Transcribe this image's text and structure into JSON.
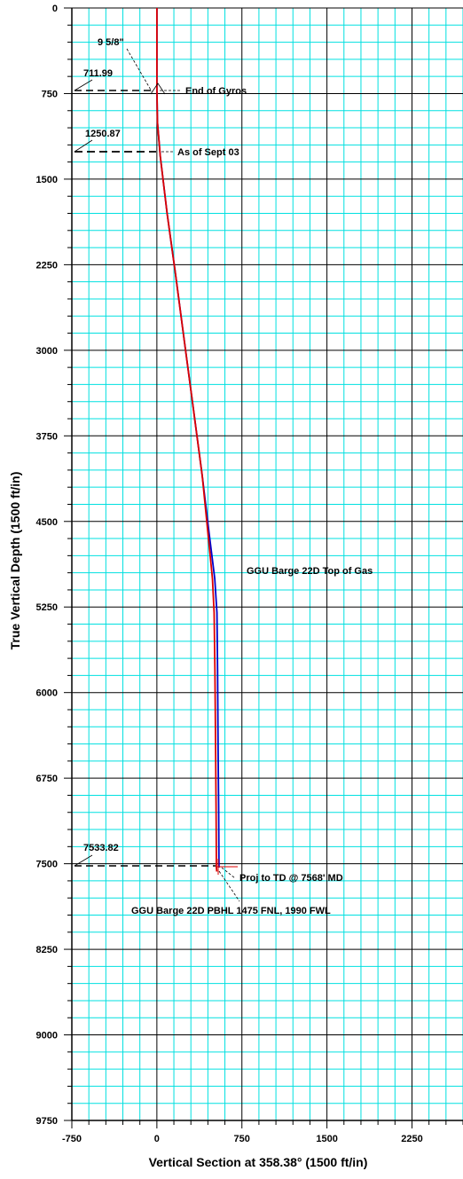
{
  "chart_data": {
    "type": "line",
    "title": "",
    "xlabel": "Vertical Section at 358.38° (1500 ft/in)",
    "ylabel": "True Vertical Depth (1500 ft/in)",
    "xlim": [
      -750,
      2700
    ],
    "ylim": [
      0,
      9750
    ],
    "y_inverted": true,
    "grid": true,
    "grid_color": "#00e0e0",
    "major_grid_color": "#000000",
    "major_grid_step": 750,
    "minor_grid_step": 150,
    "x_ticks": [
      {
        "value": -750,
        "label": "-750"
      },
      {
        "value": 0,
        "label": "0"
      },
      {
        "value": 750,
        "label": "750"
      },
      {
        "value": 1500,
        "label": "1500"
      },
      {
        "value": 2250,
        "label": "2250"
      }
    ],
    "y_ticks": [
      {
        "value": 0,
        "label": "0"
      },
      {
        "value": 750,
        "label": "750"
      },
      {
        "value": 1500,
        "label": "1500"
      },
      {
        "value": 2250,
        "label": "2250"
      },
      {
        "value": 3000,
        "label": "3000"
      },
      {
        "value": 3750,
        "label": "3750"
      },
      {
        "value": 4500,
        "label": "4500"
      },
      {
        "value": 5250,
        "label": "5250"
      },
      {
        "value": 6000,
        "label": "6000"
      },
      {
        "value": 6750,
        "label": "6750"
      },
      {
        "value": 7500,
        "label": "7500"
      },
      {
        "value": 8250,
        "label": "8250"
      },
      {
        "value": 9000,
        "label": "9000"
      },
      {
        "value": 9750,
        "label": "9750"
      }
    ],
    "series": [
      {
        "color": "#0000cc",
        "points": [
          [
            0,
            0
          ],
          [
            0,
            700
          ],
          [
            5,
            1000
          ],
          [
            30,
            1300
          ],
          [
            90,
            1800
          ],
          [
            160,
            2300
          ],
          [
            240,
            2900
          ],
          [
            320,
            3500
          ],
          [
            400,
            4100
          ],
          [
            460,
            4600
          ],
          [
            510,
            5000
          ],
          [
            530,
            5300
          ],
          [
            535,
            5800
          ],
          [
            540,
            6500
          ],
          [
            545,
            7000
          ],
          [
            548,
            7534
          ]
        ]
      },
      {
        "color": "#dd0000",
        "points": [
          [
            0,
            0
          ],
          [
            0,
            700
          ],
          [
            5,
            1000
          ],
          [
            30,
            1300
          ],
          [
            90,
            1800
          ],
          [
            160,
            2300
          ],
          [
            240,
            2900
          ],
          [
            320,
            3500
          ],
          [
            400,
            4100
          ],
          [
            450,
            4600
          ],
          [
            490,
            5000
          ],
          [
            505,
            5300
          ],
          [
            512,
            5800
          ],
          [
            518,
            6500
          ],
          [
            522,
            7000
          ],
          [
            525,
            7534
          ],
          [
            528,
            7568
          ]
        ]
      }
    ],
    "annotations": [
      {
        "text": "9 5/8\"",
        "depth": null
      },
      {
        "text": "711.99",
        "depth": 711.99
      },
      {
        "text": "End of Gyros",
        "depth": null
      },
      {
        "text": "1250.87",
        "depth": 1250.87
      },
      {
        "text": "As of Sept 03",
        "depth": null
      },
      {
        "text": "GGU Barge 22D Top of Gas",
        "depth": null
      },
      {
        "text": "7533.82",
        "depth": 7533.82
      },
      {
        "text": "Proj to TD @ 7568' MD",
        "depth": null
      },
      {
        "text": "GGU Barge 22D PBHL 1475 FNL, 1990 FWL",
        "depth": null
      }
    ]
  }
}
